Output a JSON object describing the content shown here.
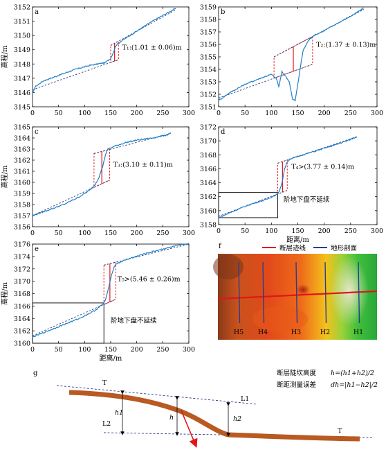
{
  "chart_data": [
    {
      "id": "a",
      "type": "line",
      "panel_label": "a",
      "xlim": [
        0,
        300
      ],
      "ylim": [
        3145,
        3152
      ],
      "xticks": [
        0,
        50,
        100,
        150,
        200,
        250,
        300
      ],
      "yticks": [
        3145,
        3146,
        3147,
        3148,
        3149,
        3150,
        3151,
        3152
      ],
      "xlabel": "",
      "ylabel": "高程/m",
      "profile": [
        [
          0,
          3145.9
        ],
        [
          5,
          3146.4
        ],
        [
          20,
          3146.8
        ],
        [
          50,
          3147.2
        ],
        [
          80,
          3147.6
        ],
        [
          110,
          3147.9
        ],
        [
          140,
          3148.1
        ],
        [
          150,
          3148.4
        ],
        [
          156,
          3148.9
        ],
        [
          160,
          3149.3
        ],
        [
          170,
          3149.6
        ],
        [
          200,
          3150.3
        ],
        [
          230,
          3151.0
        ],
        [
          260,
          3151.6
        ],
        [
          275,
          3151.9
        ]
      ],
      "fit_upper": [
        [
          150,
          3149.3
        ],
        [
          275,
          3151.8
        ]
      ],
      "fit_lower": [
        [
          0,
          3146.2
        ],
        [
          165,
          3148.3
        ]
      ],
      "fault_box": [
        150,
        165
      ],
      "annotation": "T₁:(1.01 ± 0.06)m",
      "annotation_pos": [
        172,
        3149.0
      ]
    },
    {
      "id": "b",
      "type": "line",
      "panel_label": "b",
      "xlim": [
        0,
        300
      ],
      "ylim": [
        3151,
        3159
      ],
      "xticks": [
        0,
        50,
        100,
        150,
        200,
        250,
        300
      ],
      "yticks": [
        3151,
        3152,
        3153,
        3154,
        3155,
        3156,
        3157,
        3158,
        3159
      ],
      "xlabel": "",
      "ylabel": "",
      "profile": [
        [
          0,
          3151.5
        ],
        [
          20,
          3152.1
        ],
        [
          50,
          3152.8
        ],
        [
          80,
          3153.3
        ],
        [
          100,
          3153.6
        ],
        [
          110,
          3153.2
        ],
        [
          114,
          3152.6
        ],
        [
          120,
          3153.8
        ],
        [
          126,
          3153.5
        ],
        [
          134,
          3153.0
        ],
        [
          140,
          3151.6
        ],
        [
          145,
          3151.5
        ],
        [
          150,
          3152.8
        ],
        [
          155,
          3154.2
        ],
        [
          160,
          3155.5
        ],
        [
          170,
          3156.3
        ],
        [
          180,
          3156.7
        ],
        [
          200,
          3157.1
        ],
        [
          230,
          3157.8
        ],
        [
          260,
          3158.5
        ],
        [
          275,
          3158.9
        ]
      ],
      "fit_upper": [
        [
          105,
          3155.0
        ],
        [
          275,
          3158.8
        ]
      ],
      "fit_lower": [
        [
          0,
          3151.7
        ],
        [
          178,
          3154.4
        ]
      ],
      "fault_box": [
        105,
        178
      ],
      "annotation": "T₂:(1.37 ± 0.13)m",
      "annotation_pos": [
        185,
        3155.8
      ]
    },
    {
      "id": "c",
      "type": "line",
      "panel_label": "c",
      "xlim": [
        0,
        300
      ],
      "ylim": [
        3156,
        3165
      ],
      "xticks": [
        0,
        50,
        100,
        150,
        200,
        250,
        300
      ],
      "yticks": [
        3156,
        3157,
        3158,
        3159,
        3160,
        3161,
        3162,
        3163,
        3164,
        3165
      ],
      "xlabel": "",
      "ylabel": "高程/m",
      "profile": [
        [
          0,
          3157.0
        ],
        [
          30,
          3157.5
        ],
        [
          60,
          3158.0
        ],
        [
          90,
          3158.7
        ],
        [
          110,
          3159.3
        ],
        [
          120,
          3159.8
        ],
        [
          128,
          3160.5
        ],
        [
          135,
          3161.5
        ],
        [
          140,
          3162.5
        ],
        [
          145,
          3163.0
        ],
        [
          160,
          3163.3
        ],
        [
          180,
          3163.6
        ],
        [
          200,
          3163.8
        ],
        [
          230,
          3164.0
        ],
        [
          260,
          3164.3
        ],
        [
          265,
          3164.5
        ]
      ],
      "fit_upper": [
        [
          118,
          3162.6
        ],
        [
          265,
          3164.4
        ]
      ],
      "fit_lower": [
        [
          0,
          3157.0
        ],
        [
          148,
          3160.2
        ]
      ],
      "fault_box": [
        118,
        148
      ],
      "annotation": "T₃:(3.10 ± 0.11)m",
      "annotation_pos": [
        155,
        3161.4
      ]
    },
    {
      "id": "d",
      "type": "line",
      "panel_label": "d",
      "xlim": [
        0,
        300
      ],
      "ylim": [
        3158,
        3172
      ],
      "xticks": [
        0,
        50,
        100,
        150,
        200,
        250,
        300
      ],
      "yticks": [
        3158,
        3160,
        3162,
        3164,
        3166,
        3168,
        3170,
        3172
      ],
      "xlabel": "距离/m",
      "ylabel": "",
      "profile": [
        [
          0,
          3159.0
        ],
        [
          30,
          3160.0
        ],
        [
          60,
          3160.9
        ],
        [
          90,
          3161.6
        ],
        [
          110,
          3162.3
        ],
        [
          115,
          3162.7
        ],
        [
          120,
          3164.0
        ],
        [
          125,
          3166.0
        ],
        [
          130,
          3167.0
        ],
        [
          135,
          3167.4
        ],
        [
          160,
          3168.0
        ],
        [
          190,
          3168.7
        ],
        [
          220,
          3169.4
        ],
        [
          250,
          3170.2
        ],
        [
          262,
          3170.6
        ]
      ],
      "fit_upper": [
        [
          112,
          3166.8
        ],
        [
          262,
          3170.6
        ]
      ],
      "fit_lower": [
        [
          0,
          3159.2
        ],
        [
          130,
          3162.9
        ]
      ],
      "fault_box": [
        112,
        130
      ],
      "black_box": [
        0,
        112,
        3159,
        3162.6
      ],
      "annotation": "T₄>(3.77 ± 0.14)m",
      "annotation_pos": [
        138,
        3166.0
      ],
      "annotation2": "阶地下盘不延续",
      "annotation2_pos": [
        123,
        3161.3
      ]
    },
    {
      "id": "e",
      "type": "line",
      "panel_label": "e",
      "xlim": [
        0,
        300
      ],
      "ylim": [
        3160,
        3176
      ],
      "xticks": [
        0,
        50,
        100,
        150,
        200,
        250,
        300
      ],
      "yticks": [
        3160,
        3162,
        3164,
        3166,
        3168,
        3170,
        3172,
        3174,
        3176
      ],
      "xlabel": "距离/m",
      "ylabel": "高程/m",
      "profile": [
        [
          0,
          3161.0
        ],
        [
          30,
          3162.0
        ],
        [
          60,
          3163.0
        ],
        [
          90,
          3164.0
        ],
        [
          120,
          3165.3
        ],
        [
          135,
          3166.3
        ],
        [
          140,
          3167.0
        ],
        [
          145,
          3168.5
        ],
        [
          150,
          3170.5
        ],
        [
          155,
          3172.0
        ],
        [
          160,
          3172.8
        ],
        [
          180,
          3173.5
        ],
        [
          210,
          3174.3
        ],
        [
          240,
          3175.0
        ],
        [
          270,
          3175.6
        ],
        [
          300,
          3176.1
        ]
      ],
      "fit_upper": [
        [
          137,
          3172.6
        ],
        [
          300,
          3176.0
        ]
      ],
      "fit_lower": [
        [
          0,
          3161.2
        ],
        [
          160,
          3167.1
        ]
      ],
      "fault_box": [
        137,
        160
      ],
      "black_box": [
        0,
        137,
        3160,
        3166.5
      ],
      "annotation": "T₅>(5.46 ± 0.26)m",
      "annotation_pos": [
        163,
        3170.0
      ],
      "annotation2": "阶地下盘不延续",
      "annotation2_pos": [
        150,
        3163.3
      ]
    }
  ],
  "map_panel": {
    "label": "f",
    "legend_fault": "断层迹线",
    "legend_profile": "地形剖面",
    "profiles": [
      "H5",
      "H4",
      "H3",
      "H2",
      "H1"
    ],
    "colors": {
      "fault": "#e0161b",
      "profile": "#2a3c8f"
    }
  },
  "diagram_panel": {
    "label": "g",
    "terrace_upper": "T",
    "terrace_lower": "T",
    "line_upper": "L1",
    "line_lower": "L2",
    "h1": "h1",
    "h": "h",
    "h2": "h2",
    "formula1_label": "断层陡坎高度",
    "formula1": "h=(h1+h2)/2",
    "formula2_label": "断距测量误差",
    "formula2": "dh=|h1−h2|/2",
    "colors": {
      "terrace": "#b85a22",
      "dash": "#2a3c8f",
      "arrow": "#e0161b"
    }
  }
}
